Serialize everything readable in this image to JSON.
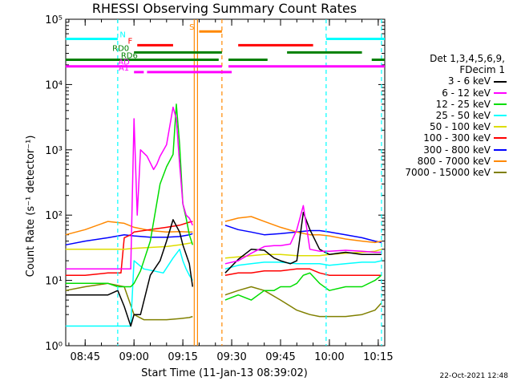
{
  "chart_data": {
    "type": "line",
    "title": "RHESSI Observing Summary Count Rates",
    "xlabel": "Start Time (11-Jan-13 08:39:02)",
    "ylabel": "Count Rate (s⁻¹ detector⁻¹)",
    "yscale": "log",
    "xlim": [
      "08:39:02",
      "10:17:00"
    ],
    "ylim": [
      1,
      100000
    ],
    "x_ticks": [
      "08:45",
      "09:00",
      "09:15",
      "09:30",
      "09:45",
      "10:00",
      "10:15"
    ],
    "y_ticks": [
      "10⁰",
      "10¹",
      "10²",
      "10³",
      "10⁴",
      "10⁵"
    ],
    "grid": false,
    "legend_position": "right",
    "legend_header": [
      "Det 1,3,4,5,6,9,",
      "FDecim 1"
    ],
    "data_gap": [
      "09:19:00",
      "09:28:00"
    ],
    "series": [
      {
        "name": "3 - 6 keV",
        "color": "#000000",
        "x": [
          "08:39",
          "08:45",
          "08:52",
          "08:55",
          "08:57",
          "08:59",
          "09:00",
          "09:02",
          "09:05",
          "09:08",
          "09:10",
          "09:12",
          "09:14",
          "09:15",
          "09:17",
          "09:18",
          "09:28",
          "09:32",
          "09:36",
          "09:40",
          "09:43",
          "09:45",
          "09:48",
          "09:50",
          "09:52",
          "09:54",
          "09:57",
          "10:00",
          "10:05",
          "10:10",
          "10:14",
          "10:16"
        ],
        "y": [
          6,
          6,
          6,
          7,
          4,
          2,
          3,
          3,
          12,
          20,
          40,
          85,
          55,
          35,
          18,
          8,
          13,
          21,
          30,
          29,
          22,
          20,
          18,
          20,
          110,
          60,
          30,
          25,
          27,
          25,
          25,
          25
        ]
      },
      {
        "name": "6 - 12 keV",
        "color": "#ff00ff",
        "x": [
          "08:39",
          "08:45",
          "08:52",
          "08:55",
          "08:57",
          "08:59",
          "09:00",
          "09:01",
          "09:02",
          "09:04",
          "09:06",
          "09:07",
          "09:08",
          "09:10",
          "09:12",
          "09:13",
          "09:14",
          "09:15",
          "09:16",
          "09:17",
          "09:18",
          "09:28",
          "09:32",
          "09:36",
          "09:40",
          "09:43",
          "09:45",
          "09:48",
          "09:50",
          "09:52",
          "09:54",
          "09:57",
          "10:00",
          "10:05",
          "10:10",
          "10:14",
          "10:16"
        ],
        "y": [
          15,
          15,
          15,
          15,
          15,
          15,
          3000,
          100,
          1000,
          800,
          500,
          600,
          800,
          1200,
          4500,
          3000,
          600,
          150,
          100,
          90,
          70,
          18,
          20,
          26,
          33,
          34,
          34,
          36,
          60,
          140,
          30,
          28,
          28,
          29,
          28,
          27,
          27
        ]
      },
      {
        "name": "12 - 25 keV",
        "color": "#00dd00",
        "x": [
          "08:39",
          "08:45",
          "08:52",
          "08:55",
          "08:57",
          "08:59",
          "09:00",
          "09:02",
          "09:05",
          "09:08",
          "09:10",
          "09:12",
          "09:13",
          "09:14",
          "09:15",
          "09:16",
          "09:17",
          "09:18",
          "09:28",
          "09:32",
          "09:36",
          "09:40",
          "09:43",
          "09:45",
          "09:48",
          "09:50",
          "09:52",
          "09:54",
          "09:57",
          "10:00",
          "10:05",
          "10:10",
          "10:14",
          "10:16"
        ],
        "y": [
          9,
          9,
          9,
          8,
          8,
          8,
          9,
          14,
          40,
          300,
          550,
          850,
          5000,
          1200,
          150,
          90,
          50,
          35,
          5,
          6,
          5,
          7,
          7,
          8,
          8,
          9,
          12,
          13,
          9,
          7,
          8,
          8,
          10,
          12
        ]
      },
      {
        "name": "25 - 50 keV",
        "color": "#00ffff",
        "x": [
          "08:39",
          "08:45",
          "08:52",
          "08:55",
          "08:57",
          "08:59",
          "09:00",
          "09:03",
          "09:06",
          "09:09",
          "09:12",
          "09:14",
          "09:15",
          "09:16",
          "09:17",
          "09:18",
          "09:28",
          "09:32",
          "09:36",
          "09:40",
          "09:45",
          "09:50",
          "09:54",
          "09:57",
          "10:00",
          "10:05",
          "10:10",
          "10:14",
          "10:16"
        ],
        "y": [
          2,
          2,
          2,
          2,
          2,
          2,
          20,
          15,
          14,
          13,
          22,
          30,
          20,
          15,
          12,
          10,
          15,
          17,
          18,
          19,
          19,
          18,
          18,
          18,
          17,
          18,
          19,
          19,
          20
        ]
      },
      {
        "name": "50 - 100 keV",
        "color": "#dddd00",
        "x": [
          "08:39",
          "08:45",
          "08:52",
          "08:57",
          "09:00",
          "09:05",
          "09:10",
          "09:14",
          "09:17",
          "09:18",
          "09:28",
          "09:32",
          "09:36",
          "09:40",
          "09:45",
          "09:50",
          "09:54",
          "09:57",
          "10:00",
          "10:05",
          "10:10",
          "10:14",
          "10:16"
        ],
        "y": [
          30,
          30,
          30,
          30,
          31,
          32,
          33,
          35,
          37,
          38,
          22,
          23,
          24,
          25,
          25,
          24,
          24,
          24,
          25,
          26,
          27,
          28,
          30
        ]
      },
      {
        "name": "100 - 300 keV",
        "color": "#ff0000",
        "x": [
          "08:39",
          "08:45",
          "08:52",
          "08:56",
          "08:57",
          "08:59",
          "09:00",
          "09:05",
          "09:10",
          "09:14",
          "09:17",
          "09:18",
          "09:28",
          "09:32",
          "09:36",
          "09:40",
          "09:45",
          "09:50",
          "09:54",
          "09:57",
          "10:00",
          "10:05",
          "10:10",
          "10:14",
          "10:16"
        ],
        "y": [
          12,
          12,
          13,
          13,
          45,
          50,
          55,
          60,
          65,
          70,
          78,
          80,
          12,
          13,
          13,
          14,
          14,
          15,
          15,
          13,
          12,
          12,
          12,
          12,
          12
        ]
      },
      {
        "name": "300 - 800 keV",
        "color": "#0000ff",
        "x": [
          "08:39",
          "08:45",
          "08:52",
          "08:57",
          "09:00",
          "09:05",
          "09:10",
          "09:14",
          "09:17",
          "09:18",
          "09:28",
          "09:32",
          "09:36",
          "09:40",
          "09:45",
          "09:50",
          "09:54",
          "09:57",
          "10:00",
          "10:05",
          "10:10",
          "10:14",
          "10:16"
        ],
        "y": [
          35,
          40,
          45,
          50,
          48,
          46,
          46,
          47,
          50,
          52,
          70,
          60,
          55,
          50,
          52,
          55,
          58,
          58,
          55,
          50,
          45,
          40,
          38
        ]
      },
      {
        "name": "800 - 7000 keV",
        "color": "#ff8800",
        "x": [
          "08:39",
          "08:45",
          "08:52",
          "08:57",
          "09:00",
          "09:05",
          "09:10",
          "09:14",
          "09:17",
          "09:18",
          "09:28",
          "09:32",
          "09:36",
          "09:40",
          "09:45",
          "09:50",
          "09:54",
          "09:57",
          "10:00",
          "10:05",
          "10:10",
          "10:14",
          "10:16"
        ],
        "y": [
          50,
          60,
          80,
          75,
          65,
          58,
          55,
          56,
          55,
          55,
          80,
          90,
          95,
          80,
          65,
          55,
          50,
          50,
          48,
          43,
          40,
          38,
          40
        ]
      },
      {
        "name": "7000 - 15000 keV",
        "color": "#808000",
        "x": [
          "08:39",
          "08:45",
          "08:52",
          "08:57",
          "09:00",
          "09:03",
          "09:06",
          "09:10",
          "09:14",
          "09:17",
          "09:18",
          "09:28",
          "09:32",
          "09:36",
          "09:40",
          "09:45",
          "09:50",
          "09:54",
          "09:57",
          "10:00",
          "10:05",
          "10:10",
          "10:14",
          "10:16"
        ],
        "y": [
          7,
          8,
          9,
          8,
          3,
          2.5,
          2.5,
          2.5,
          2.6,
          2.7,
          2.8,
          6,
          7,
          8,
          7,
          5,
          3.5,
          3,
          2.8,
          2.8,
          2.8,
          3,
          3.5,
          4.5
        ]
      }
    ],
    "flag_bars": [
      {
        "label": "N",
        "color": "#00ffff",
        "level": 50000,
        "segments": [
          [
            "08:39",
            "08:55"
          ],
          [
            "09:59",
            "10:17"
          ]
        ]
      },
      {
        "label": "F",
        "color": "#ff0000",
        "level": 40000,
        "segments": [
          [
            "09:01",
            "09:12"
          ],
          [
            "09:32",
            "09:55"
          ]
        ]
      },
      {
        "label": "RD0",
        "color": "#008000",
        "level": 31000,
        "segments": [
          [
            "09:00",
            "09:27"
          ],
          [
            "09:47",
            "10:10"
          ]
        ]
      },
      {
        "label": "RD6",
        "color": "#008000",
        "level": 24000,
        "segments": [
          [
            "08:39",
            "09:26"
          ],
          [
            "09:29",
            "09:41"
          ],
          [
            "10:13",
            "10:17"
          ]
        ]
      },
      {
        "label": "AD",
        "color": "#ff00ff",
        "level": 19000,
        "segments": [
          [
            "08:39",
            "09:27"
          ],
          [
            "09:29",
            "10:17"
          ]
        ]
      },
      {
        "label": "A1",
        "color": "#ff00ff",
        "level": 15500,
        "segments": [
          [
            "09:00",
            "09:03"
          ],
          [
            "09:04",
            "09:30"
          ]
        ]
      },
      {
        "label": "S",
        "color": "#ff8800",
        "level": 65000,
        "segments": [
          [
            "09:20",
            "09:27"
          ]
        ]
      }
    ],
    "markers": [
      {
        "color": "#00ffff",
        "times": [
          "08:55",
          "09:59",
          "10:16"
        ]
      },
      {
        "color": "#ff8800",
        "times": [
          "09:18:30",
          "09:19:30",
          "09:27:00"
        ]
      }
    ]
  },
  "footer": {
    "timestamp": "22-Oct-2021 12:48"
  }
}
